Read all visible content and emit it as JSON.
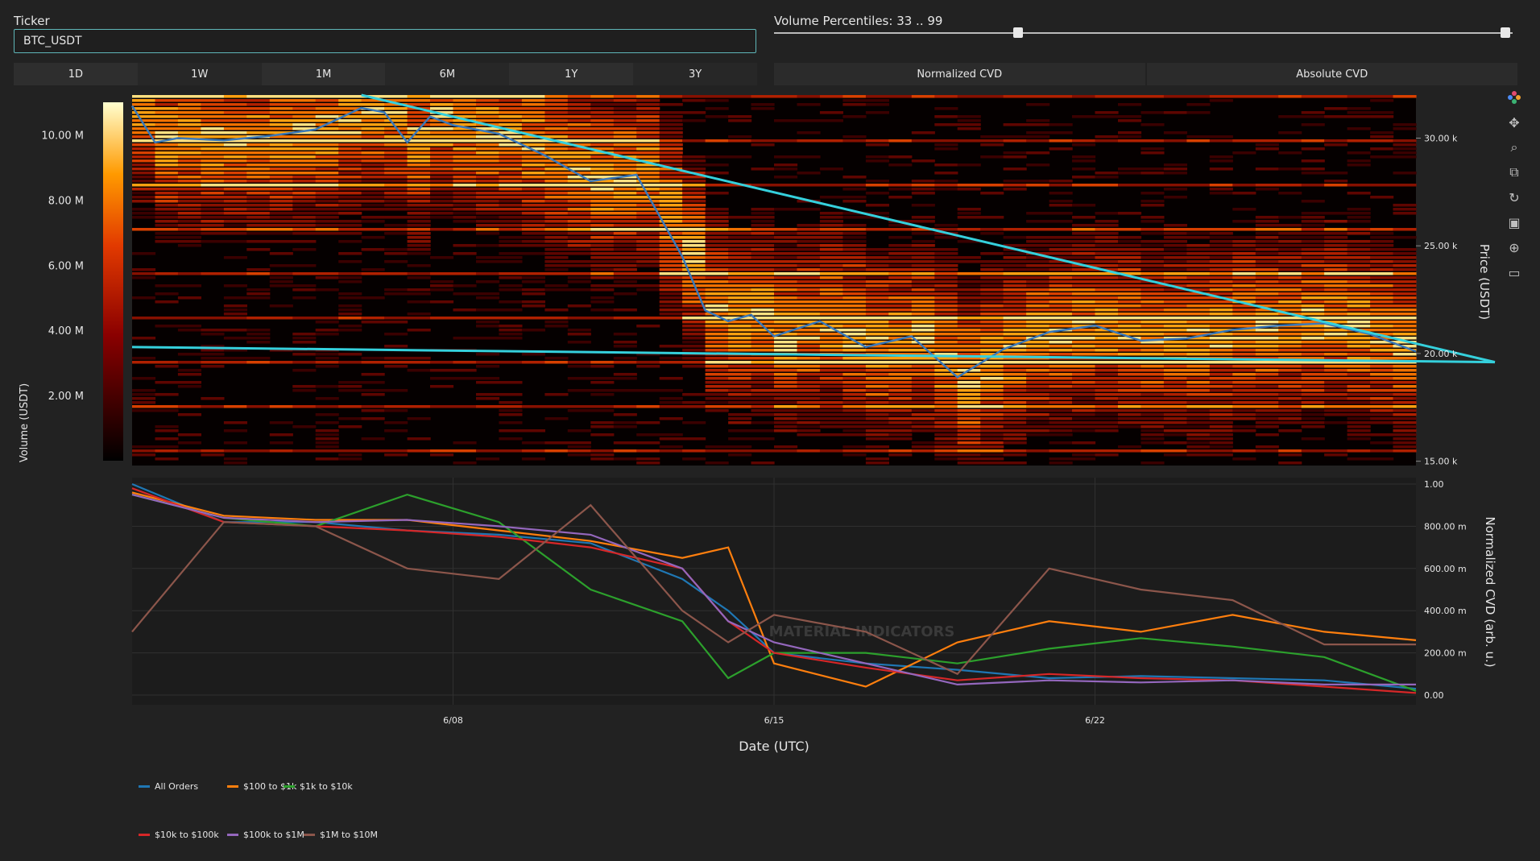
{
  "ticker": {
    "label": "Ticker",
    "value": "BTC_USDT"
  },
  "range_buttons": [
    "1D",
    "1W",
    "1M",
    "6M",
    "1Y",
    "3Y"
  ],
  "volume_percentiles": {
    "label": "Volume Percentiles: 33 .. 99",
    "min": 33,
    "max": 99,
    "range": [
      0,
      100
    ]
  },
  "cvd_buttons": [
    "Normalized CVD",
    "Absolute CVD"
  ],
  "toolbar_icons": [
    "plotly-logo-icon",
    "pan-icon",
    "zoom-icon",
    "box-select-icon",
    "reset-icon",
    "save-icon",
    "crosshair-icon",
    "comment-icon"
  ],
  "heatmap": {
    "colorbar_ticks": [
      "10.00 M",
      "8.00 M",
      "6.00 M",
      "4.00 M",
      "2.00 M"
    ],
    "colorbar_title": "Volume (USDT)",
    "price_axis_title": "Price (USDT)",
    "price_ticks": [
      "30.00 k",
      "25.00 k",
      "20.00 k",
      "15.00 k"
    ]
  },
  "cvd": {
    "axis_title": "Normalized CVD (arb. u.)",
    "y_ticks": [
      "1.00",
      "800.00 m",
      "600.00 m",
      "400.00 m",
      "200.00 m",
      "0.00"
    ],
    "x_ticks": [
      "6/08",
      "6/15",
      "6/22"
    ],
    "x_axis_title": "Date (UTC)",
    "watermark": "MATERIAL INDICATORS"
  },
  "legend": [
    {
      "name": "All Orders",
      "color": "#1f77b4"
    },
    {
      "name": "$100 to $1k",
      "color": "#ff7f0e"
    },
    {
      "name": "$1k to $10k",
      "color": "#2ca02c"
    },
    {
      "name": "$10k to $100k",
      "color": "#d62728"
    },
    {
      "name": "$100k to $1M",
      "color": "#9467bd"
    },
    {
      "name": "$1M to $10M",
      "color": "#8c564b"
    }
  ],
  "chart_data": [
    {
      "type": "heatmap",
      "x_range": [
        "6/01",
        "6/29"
      ],
      "y_range": [
        14800,
        32000
      ],
      "y_label": "Price (USDT)",
      "colorbar_label": "Volume (USDT)",
      "colorbar_range": [
        0,
        11000000
      ],
      "price_line": {
        "color": "#3a78b8",
        "x_days": [
          0,
          0.5,
          1,
          2,
          3,
          4,
          5,
          5.5,
          6,
          6.5,
          7,
          8,
          9,
          10,
          11,
          12,
          12.5,
          13,
          13.5,
          14,
          15,
          16,
          17,
          18,
          19,
          20,
          21,
          22,
          23,
          24,
          25,
          26,
          27,
          28
        ],
        "y_price": [
          31500,
          29800,
          30000,
          29900,
          30100,
          30400,
          31400,
          31200,
          29800,
          31000,
          30600,
          30200,
          29200,
          28000,
          28300,
          24500,
          22000,
          21500,
          21800,
          20800,
          21500,
          20300,
          20800,
          18900,
          20200,
          21000,
          21300,
          20600,
          20700,
          21100,
          21300,
          21400,
          20900,
          20100
        ]
      },
      "trendlines": [
        {
          "color": "#35d0dc",
          "from": [
            "6/06",
            32000
          ],
          "to": [
            "6/29",
            19600
          ]
        },
        {
          "color": "#35d0dc",
          "from": [
            "6/01",
            20300
          ],
          "to": [
            "6/29",
            19600
          ]
        }
      ]
    },
    {
      "type": "line",
      "x": [
        "6/01",
        "6/03",
        "6/05",
        "6/07",
        "6/09",
        "6/11",
        "6/13",
        "6/14",
        "6/15",
        "6/17",
        "6/19",
        "6/21",
        "6/23",
        "6/25",
        "6/27",
        "6/29"
      ],
      "y_label": "Normalized CVD (arb. u.)",
      "x_label": "Date (UTC)",
      "ylim": [
        0,
        1
      ],
      "series": [
        {
          "name": "All Orders",
          "values": [
            1.0,
            0.82,
            0.82,
            0.78,
            0.76,
            0.72,
            0.55,
            0.4,
            0.2,
            0.15,
            0.12,
            0.08,
            0.09,
            0.08,
            0.07,
            0.03
          ]
        },
        {
          "name": "$100 to $1k",
          "values": [
            0.96,
            0.85,
            0.83,
            0.83,
            0.78,
            0.73,
            0.65,
            0.7,
            0.15,
            0.04,
            0.25,
            0.35,
            0.3,
            0.38,
            0.3,
            0.26
          ]
        },
        {
          "name": "$1k to $10k",
          "values": [
            0.95,
            0.84,
            0.8,
            0.95,
            0.82,
            0.5,
            0.35,
            0.08,
            0.2,
            0.2,
            0.15,
            0.22,
            0.27,
            0.23,
            0.18,
            0.02
          ]
        },
        {
          "name": "$10k to $100k",
          "values": [
            0.98,
            0.82,
            0.8,
            0.78,
            0.75,
            0.7,
            0.6,
            0.35,
            0.2,
            0.13,
            0.07,
            0.1,
            0.08,
            0.07,
            0.04,
            0.01
          ]
        },
        {
          "name": "$100k to $1M",
          "values": [
            0.95,
            0.84,
            0.82,
            0.83,
            0.8,
            0.76,
            0.6,
            0.35,
            0.25,
            0.15,
            0.05,
            0.07,
            0.06,
            0.07,
            0.05,
            0.05
          ]
        },
        {
          "name": "$1M to $10M",
          "values": [
            0.3,
            0.82,
            0.8,
            0.6,
            0.55,
            0.9,
            0.4,
            0.25,
            0.38,
            0.3,
            0.1,
            0.6,
            0.5,
            0.45,
            0.24,
            0.24
          ]
        }
      ]
    }
  ]
}
